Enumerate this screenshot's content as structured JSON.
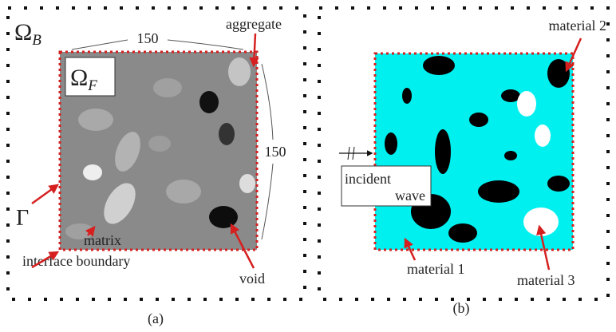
{
  "panel_a": {
    "domain_outer": {
      "symbol": "Ω",
      "subscript": "B"
    },
    "domain_inner": {
      "symbol": "Ω",
      "subscript": "F"
    },
    "width_label": "150",
    "height_label": "150",
    "boundary_symbol": "Γ",
    "labels": [
      "aggregate",
      "matrix",
      "interface boundary",
      "void"
    ],
    "caption": "(a)"
  },
  "panel_b": {
    "labels": [
      "material 2",
      "material 1",
      "material 3"
    ],
    "incident": [
      "incident",
      "wave"
    ],
    "caption": "(b)"
  }
}
